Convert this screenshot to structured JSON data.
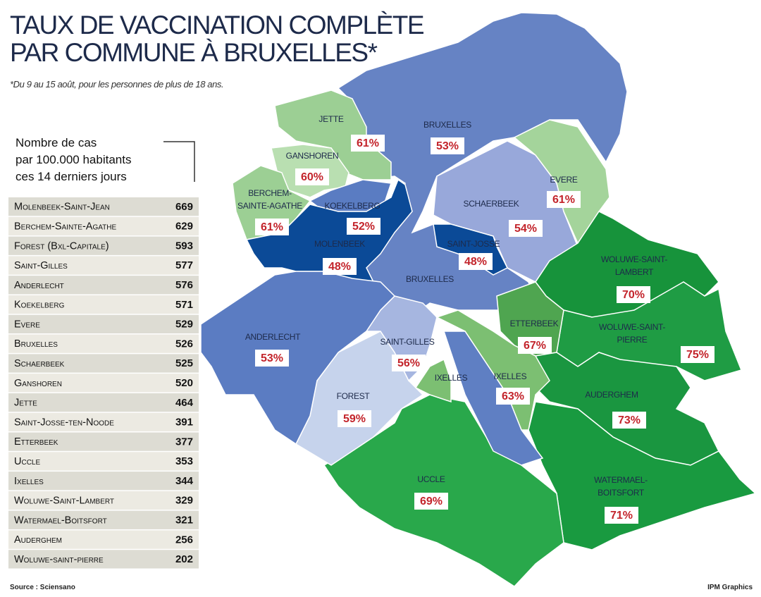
{
  "header": {
    "title": [
      "TAUX DE VACCINATION COMPLÈTE",
      "PAR COMMUNE À BRUXELLES*"
    ],
    "subtitle": "*Du 9 au 15 août, pour les personnes de plus de 18 ans."
  },
  "table": {
    "heading": [
      "Nombre de cas",
      "par 100.000 habitants",
      "ces 14 derniers jours"
    ],
    "rows": [
      [
        "Molenbeek-Saint-Jean",
        669
      ],
      [
        "Berchem-Sainte-Agathe",
        629
      ],
      [
        "Forest (Bxl-Capitale)",
        593
      ],
      [
        "Saint-Gilles",
        577
      ],
      [
        "Anderlecht",
        576
      ],
      [
        "Koekelberg",
        571
      ],
      [
        "Evere",
        529
      ],
      [
        "Bruxelles",
        526
      ],
      [
        "Schaerbeek",
        525
      ],
      [
        "Ganshoren",
        520
      ],
      [
        "Jette",
        464
      ],
      [
        "Saint-Josse-ten-Noode",
        391
      ],
      [
        "Etterbeek",
        377
      ],
      [
        "Uccle",
        353
      ],
      [
        "Ixelles",
        344
      ],
      [
        "Woluwe-Saint-Lambert",
        329
      ],
      [
        "Watermael-Boitsfort",
        321
      ],
      [
        "Auderghem",
        256
      ],
      [
        "Woluwe-saint-pierre",
        202
      ]
    ]
  },
  "map": {
    "labels": [
      {
        "name": [
          "JETTE"
        ],
        "pct": "61%"
      },
      {
        "name": [
          "GANSHOREN"
        ],
        "pct": "60%"
      },
      {
        "name": [
          "BERCHEM-",
          "SAINTE-AGATHE"
        ],
        "pct": "61%"
      },
      {
        "name": [
          "KOEKELBERG"
        ],
        "pct": "52%"
      },
      {
        "name": [
          "MOLENBEEK"
        ],
        "pct": "48%"
      },
      {
        "name": [
          "BRUXELLES"
        ],
        "pct": "53%"
      },
      {
        "name": [
          "SCHAERBEEK"
        ],
        "pct": "54%"
      },
      {
        "name": [
          "EVERE"
        ],
        "pct": "61%"
      },
      {
        "name": [
          "SAINT-JOSSE"
        ],
        "pct": "48%"
      },
      {
        "name": [
          "BRUXELLES"
        ]
      },
      {
        "name": [
          "ANDERLECHT"
        ],
        "pct": "53%"
      },
      {
        "name": [
          "SAINT-GILLES"
        ],
        "pct": "56%"
      },
      {
        "name": [
          "IXELLES"
        ]
      },
      {
        "name": [
          "ETTERBEEK"
        ],
        "pct": "67%"
      },
      {
        "name": [
          "IXELLES"
        ],
        "pct": "63%"
      },
      {
        "name": [
          "FOREST"
        ],
        "pct": "59%"
      },
      {
        "name": [
          "UCCLE"
        ],
        "pct": "69%"
      },
      {
        "name": [
          "WOLUWE-SAINT-",
          "LAMBERT"
        ],
        "pct": "70%"
      },
      {
        "name": [
          "WOLUWE-SAINT-",
          "PIERRE"
        ],
        "pct": "75%"
      },
      {
        "name": [
          "AUDERGHEM"
        ],
        "pct": "73%"
      },
      {
        "name": [
          "WATERMAEL-",
          "BOITSFORT"
        ],
        "pct": "71%"
      }
    ]
  },
  "footer": {
    "source": "Source : Sciensano",
    "credit": "IPM Graphics"
  }
}
